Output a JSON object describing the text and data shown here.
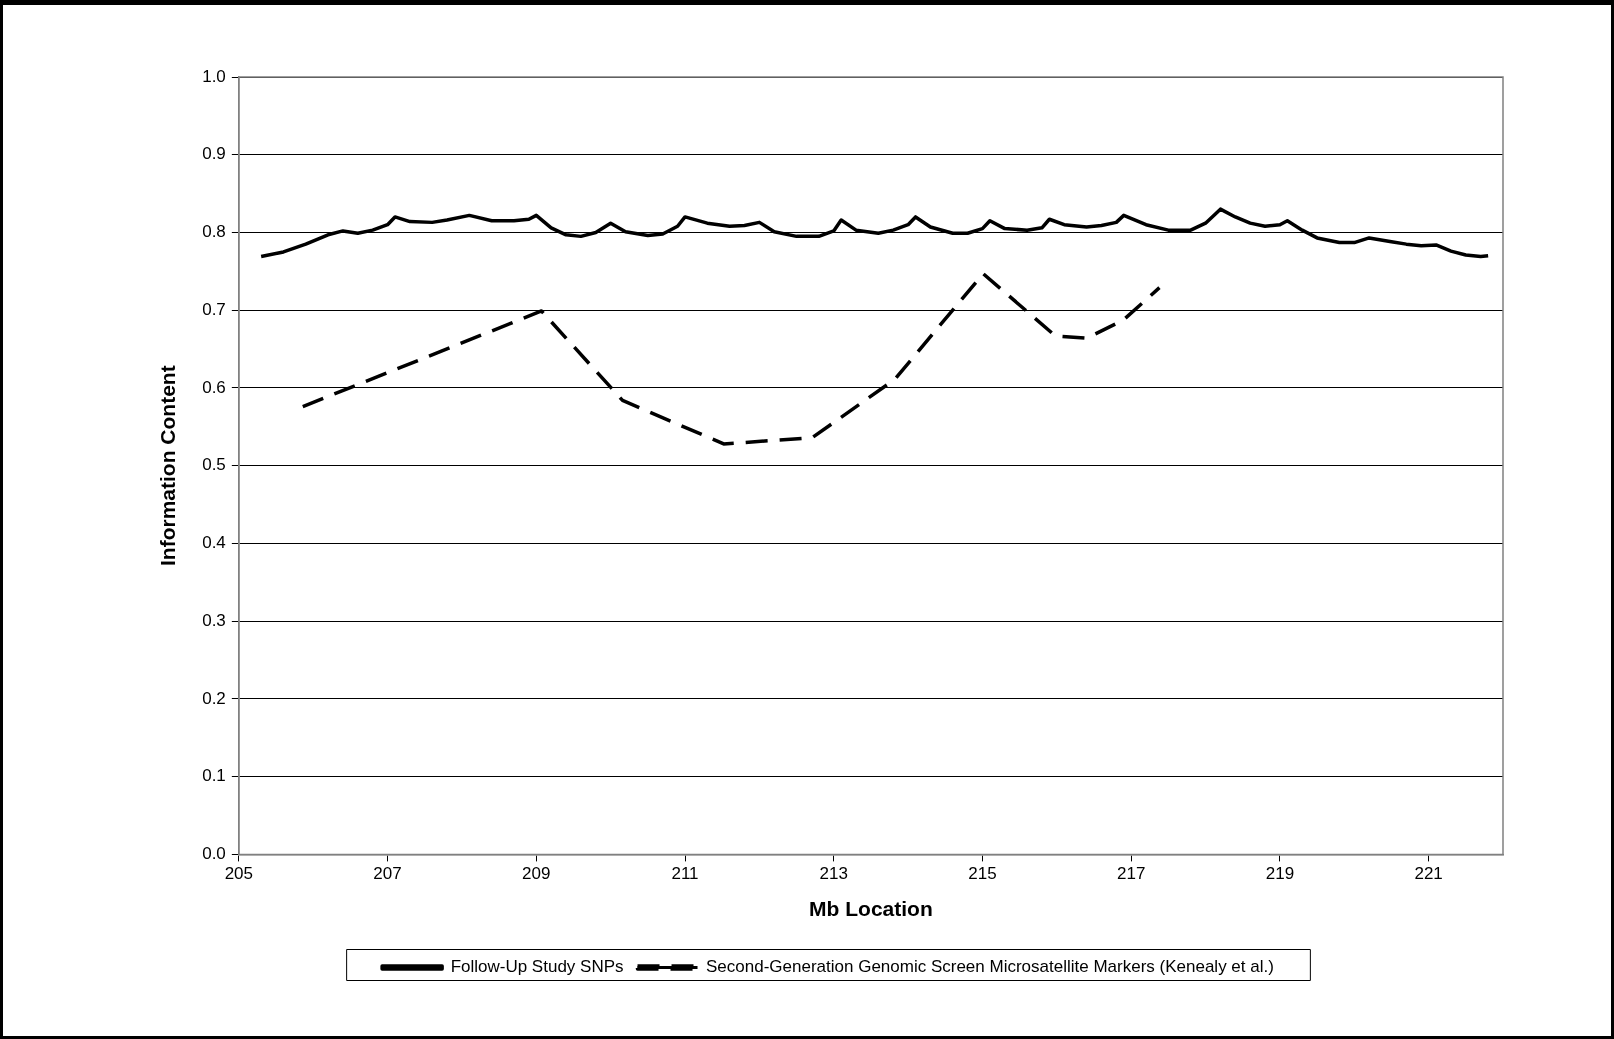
{
  "chart_data": {
    "type": "line",
    "xlabel": "Mb Location",
    "ylabel": "Information Content",
    "xlim": [
      205,
      222
    ],
    "xticks": [
      205,
      207,
      209,
      211,
      213,
      215,
      217,
      219,
      221
    ],
    "ylim": [
      0,
      1
    ],
    "yticks": [
      {
        "value": 0,
        "label": "0.0"
      },
      0.1,
      0.2,
      0.3,
      0.4,
      0.5,
      0.6,
      0.7,
      0.8,
      0.9,
      {
        "value": 1,
        "label": "1.0"
      }
    ],
    "grid": "y",
    "legend": "bottom",
    "marker": "none",
    "series": [
      {
        "name": "Follow-Up Study SNPs",
        "color": "#000000",
        "line_style": "solid",
        "x": [
          205.3,
          205.6,
          205.9,
          206.2,
          206.4,
          206.6,
          206.8,
          207.0,
          207.1,
          207.3,
          207.6,
          207.8,
          208.1,
          208.4,
          208.7,
          208.9,
          209.0,
          209.2,
          209.4,
          209.6,
          209.8,
          210.0,
          210.2,
          210.5,
          210.7,
          210.9,
          211.0,
          211.3,
          211.6,
          211.8,
          212.0,
          212.2,
          212.5,
          212.8,
          213.0,
          213.1,
          213.3,
          213.6,
          213.8,
          214.0,
          214.1,
          214.3,
          214.6,
          214.8,
          215.0,
          215.1,
          215.3,
          215.6,
          215.8,
          215.9,
          216.1,
          216.4,
          216.6,
          216.8,
          216.9,
          217.2,
          217.5,
          217.8,
          218.0,
          218.2,
          218.4,
          218.6,
          218.8,
          219.0,
          219.1,
          219.3,
          219.5,
          219.8,
          220.0,
          220.2,
          220.5,
          220.7,
          220.9,
          221.1,
          221.3,
          221.5,
          221.7,
          221.8
        ],
        "values": [
          0.769,
          0.775,
          0.785,
          0.797,
          0.802,
          0.799,
          0.803,
          0.81,
          0.82,
          0.814,
          0.813,
          0.816,
          0.822,
          0.815,
          0.815,
          0.817,
          0.822,
          0.806,
          0.797,
          0.795,
          0.8,
          0.812,
          0.801,
          0.796,
          0.798,
          0.808,
          0.82,
          0.812,
          0.808,
          0.809,
          0.813,
          0.801,
          0.795,
          0.795,
          0.802,
          0.816,
          0.803,
          0.799,
          0.803,
          0.81,
          0.82,
          0.807,
          0.799,
          0.799,
          0.805,
          0.815,
          0.805,
          0.803,
          0.806,
          0.817,
          0.81,
          0.807,
          0.809,
          0.813,
          0.822,
          0.81,
          0.803,
          0.803,
          0.812,
          0.83,
          0.82,
          0.812,
          0.808,
          0.81,
          0.815,
          0.803,
          0.793,
          0.787,
          0.787,
          0.793,
          0.788,
          0.785,
          0.783,
          0.784,
          0.776,
          0.771,
          0.769,
          0.77
        ]
      },
      {
        "name": "Second-Generation Genomic Screen Microsatellite Markers (Kenealy et al.)",
        "color": "#000000",
        "line_style": "dashed",
        "x": [
          205.86,
          209.07,
          210.16,
          211.52,
          212.71,
          213.82,
          215.01,
          215.98,
          216.4,
          216.89,
          217.38
        ],
        "values": [
          0.576,
          0.699,
          0.584,
          0.528,
          0.536,
          0.611,
          0.747,
          0.667,
          0.664,
          0.687,
          0.729
        ]
      }
    ]
  }
}
